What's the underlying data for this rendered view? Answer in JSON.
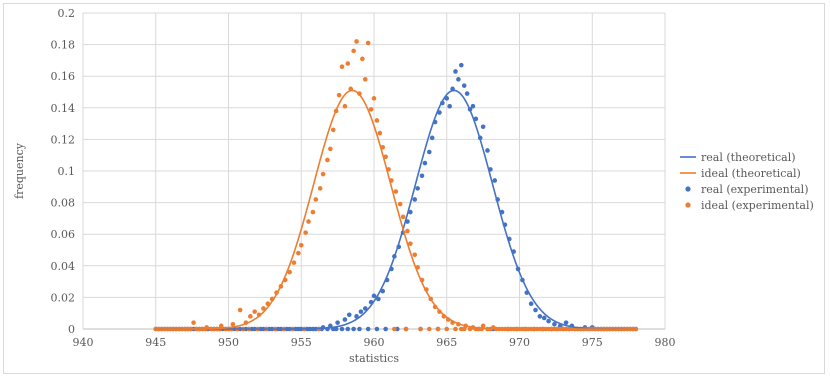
{
  "chart_data": {
    "type": "scatter",
    "xlabel": "statistics",
    "ylabel": "frequency",
    "xlim": [
      940,
      980
    ],
    "ylim": [
      0,
      0.2
    ],
    "x_ticks": [
      "940",
      "945",
      "950",
      "955",
      "960",
      "965",
      "970",
      "975",
      "980"
    ],
    "y_ticks": [
      "0",
      "0.02",
      "0.04",
      "0.06",
      "0.08",
      "0.1",
      "0.12",
      "0.14",
      "0.16",
      "0.18",
      "0.2"
    ],
    "grid": true,
    "legend_position": "right",
    "series": [
      {
        "name": "real (theoretical)",
        "kind": "line",
        "color": "#4472c4",
        "mean": 965.5,
        "peak": 0.151,
        "sd": 2.65,
        "x_range": [
          945,
          978
        ]
      },
      {
        "name": "ideal (theoretical)",
        "kind": "line",
        "color": "#ed7d31",
        "mean": 958.5,
        "peak": 0.151,
        "sd": 2.65,
        "x_range": [
          945,
          978
        ]
      },
      {
        "name": "real (experimental)",
        "kind": "scatter",
        "color": "#4472c4",
        "points": [
          [
            956.5,
            0.001
          ],
          [
            957,
            0.002
          ],
          [
            957.5,
            0.004
          ],
          [
            958,
            0.006
          ],
          [
            958.3,
            0.009
          ],
          [
            958.8,
            0.008
          ],
          [
            959.1,
            0.011
          ],
          [
            959.4,
            0.013
          ],
          [
            959.8,
            0.017
          ],
          [
            960,
            0.021
          ],
          [
            960.3,
            0.019
          ],
          [
            960.6,
            0.024
          ],
          [
            960.9,
            0.031
          ],
          [
            961.2,
            0.038
          ],
          [
            961.4,
            0.046
          ],
          [
            961.7,
            0.052
          ],
          [
            962,
            0.061
          ],
          [
            962.3,
            0.068
          ],
          [
            962.5,
            0.074
          ],
          [
            962.8,
            0.082
          ],
          [
            963,
            0.089
          ],
          [
            963.3,
            0.097
          ],
          [
            963.5,
            0.105
          ],
          [
            963.8,
            0.112
          ],
          [
            964,
            0.121
          ],
          [
            964.2,
            0.131
          ],
          [
            964.5,
            0.137
          ],
          [
            964.7,
            0.143
          ],
          [
            965,
            0.146
          ],
          [
            965.2,
            0.141
          ],
          [
            965.4,
            0.152
          ],
          [
            965.6,
            0.163
          ],
          [
            965.8,
            0.158
          ],
          [
            966,
            0.167
          ],
          [
            966.2,
            0.154
          ],
          [
            966.4,
            0.149
          ],
          [
            966.6,
            0.139
          ],
          [
            966.8,
            0.141
          ],
          [
            967,
            0.133
          ],
          [
            967.3,
            0.121
          ],
          [
            967.5,
            0.128
          ],
          [
            967.8,
            0.113
          ],
          [
            968,
            0.101
          ],
          [
            968.3,
            0.094
          ],
          [
            968.5,
            0.082
          ],
          [
            968.8,
            0.074
          ],
          [
            969,
            0.066
          ],
          [
            969.3,
            0.057
          ],
          [
            969.6,
            0.049
          ],
          [
            969.9,
            0.038
          ],
          [
            970.2,
            0.031
          ],
          [
            970.5,
            0.023
          ],
          [
            970.8,
            0.016
          ],
          [
            971.1,
            0.012
          ],
          [
            971.4,
            0.008
          ],
          [
            971.7,
            0.007
          ],
          [
            972,
            0.005
          ],
          [
            972.4,
            0.003
          ],
          [
            972.8,
            0.002
          ],
          [
            973.2,
            0.004
          ],
          [
            973.6,
            0.002
          ],
          [
            974.5,
            0.001
          ],
          [
            975,
            0.001
          ]
        ]
      },
      {
        "name": "ideal (experimental)",
        "kind": "scatter",
        "color": "#ed7d31",
        "points": [
          [
            947.6,
            0.004
          ],
          [
            948.5,
            0.001
          ],
          [
            949.5,
            0.002
          ],
          [
            950.3,
            0.003
          ],
          [
            950.8,
            0.012
          ],
          [
            951.2,
            0.004
          ],
          [
            951.5,
            0.008
          ],
          [
            951.8,
            0.011
          ],
          [
            952.1,
            0.009
          ],
          [
            952.4,
            0.013
          ],
          [
            952.7,
            0.016
          ],
          [
            953,
            0.019
          ],
          [
            953.3,
            0.023
          ],
          [
            953.6,
            0.027
          ],
          [
            953.9,
            0.031
          ],
          [
            954.2,
            0.036
          ],
          [
            954.5,
            0.042
          ],
          [
            954.8,
            0.048
          ],
          [
            955,
            0.053
          ],
          [
            955.3,
            0.061
          ],
          [
            955.5,
            0.068
          ],
          [
            955.8,
            0.074
          ],
          [
            956,
            0.082
          ],
          [
            956.3,
            0.089
          ],
          [
            956.5,
            0.098
          ],
          [
            956.8,
            0.107
          ],
          [
            957,
            0.114
          ],
          [
            957.2,
            0.126
          ],
          [
            957.4,
            0.138
          ],
          [
            957.6,
            0.148
          ],
          [
            957.8,
            0.166
          ],
          [
            958,
            0.141
          ],
          [
            958.2,
            0.168
          ],
          [
            958.4,
            0.152
          ],
          [
            958.6,
            0.176
          ],
          [
            958.8,
            0.182
          ],
          [
            959,
            0.149
          ],
          [
            959.2,
            0.171
          ],
          [
            959.4,
            0.158
          ],
          [
            959.6,
            0.181
          ],
          [
            959.8,
            0.139
          ],
          [
            960,
            0.146
          ],
          [
            960.2,
            0.132
          ],
          [
            960.4,
            0.124
          ],
          [
            960.6,
            0.115
          ],
          [
            960.8,
            0.109
          ],
          [
            961,
            0.101
          ],
          [
            961.2,
            0.094
          ],
          [
            961.5,
            0.087
          ],
          [
            961.8,
            0.079
          ],
          [
            962,
            0.071
          ],
          [
            962.3,
            0.062
          ],
          [
            962.5,
            0.054
          ],
          [
            962.8,
            0.047
          ],
          [
            963,
            0.039
          ],
          [
            963.3,
            0.031
          ],
          [
            963.6,
            0.025
          ],
          [
            963.9,
            0.019
          ],
          [
            964.2,
            0.014
          ],
          [
            964.5,
            0.011
          ],
          [
            964.8,
            0.008
          ],
          [
            965.1,
            0.006
          ],
          [
            965.4,
            0.004
          ],
          [
            965.8,
            0.003
          ],
          [
            966.3,
            0.002
          ],
          [
            966.8,
            0.001
          ],
          [
            967.5,
            0.002
          ],
          [
            968.2,
            0.001
          ]
        ]
      }
    ]
  }
}
